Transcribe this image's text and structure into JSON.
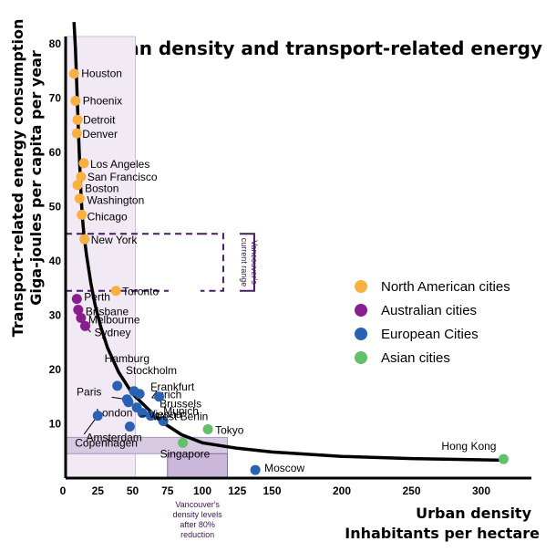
{
  "chart_data": {
    "type": "scatter",
    "title": "Urban density and transport-related energy",
    "xlabel": [
      "Urban density",
      "Inhabitants per hectare"
    ],
    "ylabel": [
      "Transport-related energy consumption",
      "Giga-joules per capita per year"
    ],
    "xlim": [
      0,
      330
    ],
    "ylim": [
      0,
      83
    ],
    "x_ticks": [
      0,
      25,
      50,
      75,
      100,
      125,
      150,
      200,
      250,
      300
    ],
    "y_ticks": [
      10,
      20,
      30,
      40,
      50,
      60,
      70,
      80
    ],
    "legend_position": "right",
    "series": [
      {
        "name": "North American cities",
        "color": "#f9b040",
        "points": [
          {
            "label": "Houston",
            "x": 8,
            "y": 74.5
          },
          {
            "label": "Phoenix",
            "x": 9,
            "y": 69.5
          },
          {
            "label": "Detroit",
            "x": 10.5,
            "y": 66
          },
          {
            "label": "Denver",
            "x": 10,
            "y": 63.5
          },
          {
            "label": "Los Angeles",
            "x": 15,
            "y": 58
          },
          {
            "label": "San Francisco",
            "x": 13,
            "y": 55.5
          },
          {
            "label": "Boston",
            "x": 10.5,
            "y": 54
          },
          {
            "label": "Washington",
            "x": 12,
            "y": 51.5
          },
          {
            "label": "Chicago",
            "x": 13.5,
            "y": 48.5
          },
          {
            "label": "New York",
            "x": 15.5,
            "y": 44
          },
          {
            "label": "Toronto",
            "x": 38,
            "y": 34.5
          }
        ]
      },
      {
        "name": "Australian cities",
        "color": "#8b1e8e",
        "points": [
          {
            "label": "Perth",
            "x": 10,
            "y": 33
          },
          {
            "label": "Brisbane",
            "x": 11,
            "y": 31
          },
          {
            "label": "Melbourne",
            "x": 13,
            "y": 29.5
          },
          {
            "label": "Sydney",
            "x": 16,
            "y": 28
          }
        ]
      },
      {
        "name": "European Cities",
        "color": "#2a62b3",
        "points": [
          {
            "label": "Hamburg",
            "x": 39,
            "y": 17
          },
          {
            "label": "Stockholm",
            "x": 51,
            "y": 16
          },
          {
            "label": "Frankfurt",
            "x": 55,
            "y": 15.5
          },
          {
            "label": "Zurich",
            "x": 47,
            "y": 14
          },
          {
            "label": "Brussels",
            "x": 53,
            "y": 13
          },
          {
            "label": "Munich",
            "x": 57,
            "y": 12
          },
          {
            "label": "Paris",
            "x": 46,
            "y": 14.5
          },
          {
            "label": "London",
            "x": 63,
            "y": 11.5
          },
          {
            "label": "West Berlin",
            "x": 72,
            "y": 10.5
          },
          {
            "label": "Vienna",
            "x": 69,
            "y": 15
          },
          {
            "label": "Amsterdam",
            "x": 48,
            "y": 9.5
          },
          {
            "label": "Copenhagen",
            "x": 25,
            "y": 11.5
          },
          {
            "label": "Moscow",
            "x": 138,
            "y": 1.5
          }
        ]
      },
      {
        "name": "Asian cities",
        "color": "#63bf6a",
        "points": [
          {
            "label": "Tokyo",
            "x": 104,
            "y": 9
          },
          {
            "label": "Singapore",
            "x": 86,
            "y": 6.5
          },
          {
            "label": "Hong Kong",
            "x": 316,
            "y": 3.5
          }
        ]
      }
    ],
    "trend_curve": [
      [
        8,
        84
      ],
      [
        9,
        79
      ],
      [
        10,
        72
      ],
      [
        11,
        65
      ],
      [
        12,
        58
      ],
      [
        13,
        52
      ],
      [
        14,
        48
      ],
      [
        15,
        45
      ],
      [
        17,
        41
      ],
      [
        20,
        36
      ],
      [
        23,
        32
      ],
      [
        27,
        28
      ],
      [
        32,
        24
      ],
      [
        40,
        19.5
      ],
      [
        50,
        15.5
      ],
      [
        60,
        13
      ],
      [
        70,
        10.5
      ],
      [
        85,
        8
      ],
      [
        100,
        6.5
      ],
      [
        125,
        5.5
      ],
      [
        150,
        4.8
      ],
      [
        200,
        4
      ],
      [
        250,
        3.6
      ],
      [
        316,
        3.3
      ]
    ],
    "annotations": {
      "vancouver_current_range": {
        "label": "Vancouver's current range",
        "y_range": [
          34.5,
          45
        ],
        "x_extent": [
          0,
          115
        ]
      },
      "vancouver_reduced": {
        "label": [
          "Vancouver's",
          "density levels",
          "after 80%",
          "reduction"
        ],
        "x_range": [
          75,
          118
        ],
        "y_range": [
          0,
          6.5
        ]
      },
      "shaded_band_x": [
        0,
        50
      ],
      "shaded_band_y": [
        0,
        80
      ]
    }
  }
}
